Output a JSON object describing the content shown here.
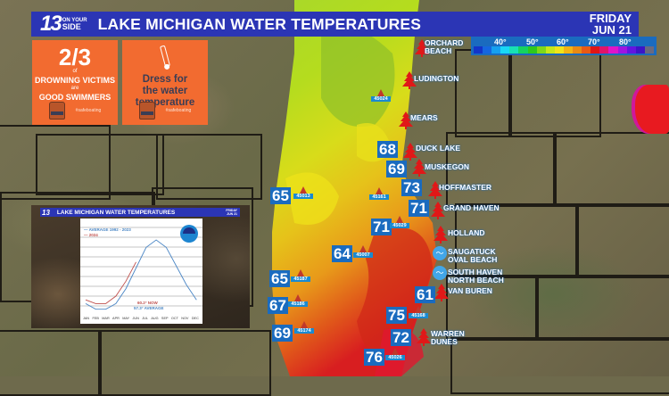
{
  "header": {
    "logo": {
      "number": "13",
      "line1": "ON YOUR",
      "line2": "SIDE"
    },
    "title": "LAKE MICHIGAN WATER TEMPERATURES",
    "day": "FRIDAY",
    "date": "JUN 21"
  },
  "legend": {
    "ticks": [
      "40°",
      "50°",
      "60°",
      "70°",
      "80°"
    ],
    "colors": [
      "#1335c8",
      "#1566e0",
      "#16a0f0",
      "#19d7f5",
      "#18e0b4",
      "#16d260",
      "#2ec81e",
      "#7ed81a",
      "#c5e81a",
      "#f0e41a",
      "#f2b414",
      "#e88a14",
      "#e85a14",
      "#e01616",
      "#e0146a",
      "#e014c8",
      "#a014e0",
      "#6414e0",
      "#3c14c8",
      "#6a6a80"
    ]
  },
  "cards": [
    {
      "big": "2/3",
      "of": "of",
      "line1": "DROWNING VICTIMS",
      "are": "are",
      "line2": "GOOD SWIMMERS",
      "badge": "WEAR IT",
      "hashtag": "#safeboating"
    },
    {
      "line1": "Dress for",
      "line2": "the water",
      "line3": "temperature",
      "badge": "WEAR IT",
      "hashtag": "#safeboating"
    }
  ],
  "inset": {
    "logo": "13",
    "title": "LAKE MICHIGAN WATER TEMPERATURES",
    "day": "FRIDAY",
    "date": "JUN 21",
    "legend_avg": "AVERAGE 1992 - 2023",
    "legend_2024": "2024",
    "now": "60.2° NOW",
    "avg": "57.3° AVERAGE",
    "months": [
      "JAN",
      "FEB",
      "MAR",
      "APR",
      "MAY",
      "JUN",
      "JUL",
      "AUG",
      "SEP",
      "OCT",
      "NOV",
      "DEC"
    ]
  },
  "chart_data": {
    "type": "line",
    "title": "LAKE MICHIGAN WATER TEMPERATURES",
    "categories": [
      "JAN",
      "FEB",
      "MAR",
      "APR",
      "MAY",
      "JUN",
      "JUL",
      "AUG",
      "SEP",
      "OCT",
      "NOV",
      "DEC"
    ],
    "series": [
      {
        "name": "AVERAGE 1992 - 2023",
        "color": "#4a86c5",
        "values": [
          38,
          35,
          35,
          38,
          46,
          57,
          68,
          72,
          68,
          58,
          48,
          40
        ]
      },
      {
        "name": "2024",
        "color": "#c0504d",
        "values": [
          40,
          38,
          38,
          42,
          50,
          60.2
        ]
      }
    ],
    "annotations": [
      "60.2° NOW",
      "57.3° AVERAGE"
    ],
    "grid": true,
    "legend_position": "top-left"
  },
  "towns": [
    {
      "name": "ORCHARD\nBEACH",
      "line1": "ORCHARD",
      "line2": "BEACH"
    },
    {
      "line1": "LUDINGTON"
    },
    {
      "line1": "MEARS"
    },
    {
      "line1": "DUCK LAKE"
    },
    {
      "line1": "MUSKEGON"
    },
    {
      "line1": "HOFFMASTER"
    },
    {
      "line1": "GRAND HAVEN"
    },
    {
      "line1": "HOLLAND"
    },
    {
      "line1": "SAUGATUCK",
      "line2": "OVAL BEACH"
    },
    {
      "line1": "SOUTH HAVEN",
      "line2": "NORTH BEACH"
    },
    {
      "line1": "VAN BUREN"
    },
    {
      "line1": "WARREN",
      "line2": "DUNES"
    }
  ],
  "temps": [
    {
      "value": "68",
      "location": "Duck Lake"
    },
    {
      "value": "69",
      "location": "Muskegon"
    },
    {
      "value": "73",
      "location": "Hoffmaster"
    },
    {
      "value": "71",
      "location": "Grand Haven"
    },
    {
      "value": "61",
      "location": "Van Buren"
    },
    {
      "value": "75",
      "location": "buoy 45168"
    },
    {
      "value": "72",
      "location": "Warren Dunes"
    },
    {
      "value": "76",
      "location": "buoy 45026"
    },
    {
      "value": "65",
      "location": "buoy 45013"
    },
    {
      "value": "71",
      "location": "buoy 45029"
    },
    {
      "value": "64",
      "location": "buoy 45007"
    },
    {
      "value": "65",
      "location": "buoy 45187"
    },
    {
      "value": "67",
      "location": "buoy 45186"
    },
    {
      "value": "69",
      "location": "buoy 45174"
    }
  ],
  "buoys": [
    "45024",
    "45161",
    "45013",
    "45029",
    "45007",
    "45187",
    "45186",
    "45174",
    "45168",
    "45026"
  ]
}
